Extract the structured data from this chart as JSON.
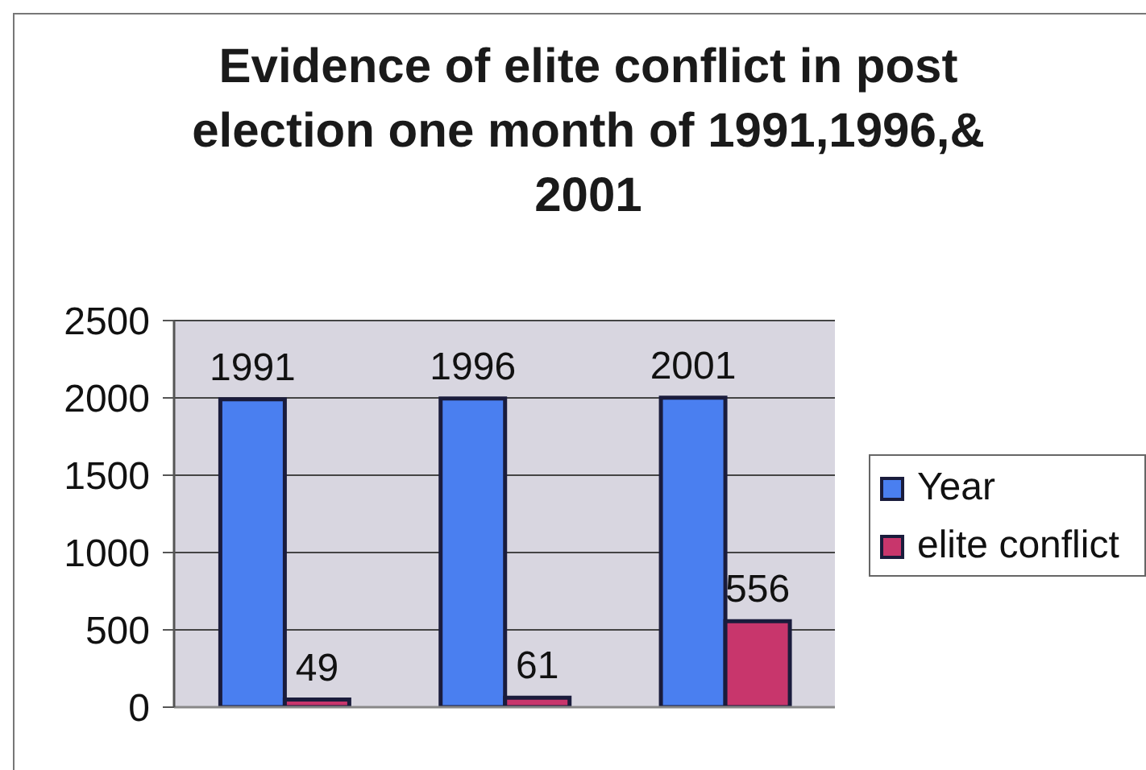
{
  "chart_data": {
    "type": "bar",
    "title": "Evidence of elite conflict in post election one month of 1991,1996,& 2001",
    "categories": [
      null,
      null,
      null
    ],
    "series": [
      {
        "name": "Year",
        "color": "#4a7ff0",
        "values": [
          1991,
          1996,
          2001
        ]
      },
      {
        "name": "elite conflict",
        "color": "#c8366c",
        "values": [
          49,
          61,
          556
        ]
      }
    ],
    "ylim": [
      0,
      2500
    ],
    "yticks": [
      0,
      500,
      1000,
      1500,
      2000,
      2500
    ],
    "grid": "y",
    "legend": "right",
    "data_labels": true
  }
}
